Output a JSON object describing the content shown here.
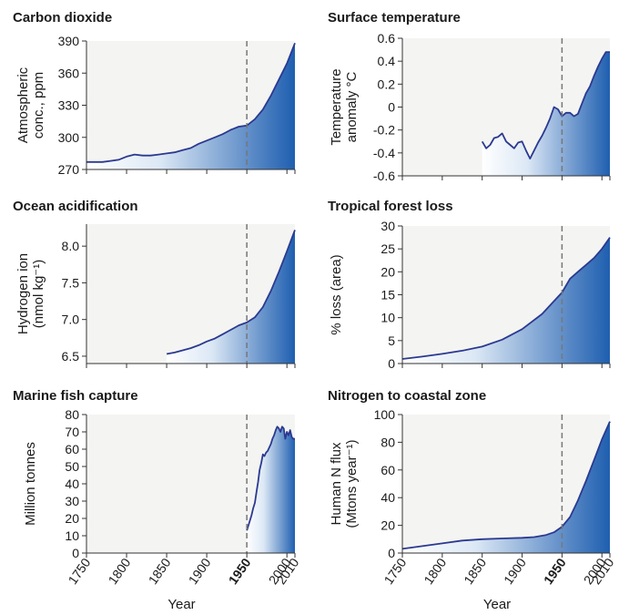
{
  "figure": {
    "x_axis_title": "Year",
    "x_tick_labels": [
      "1750",
      "1800",
      "1850",
      "1900",
      "1950",
      "2000",
      "2010"
    ],
    "bold_tick": "1950",
    "reference_year": 1950
  },
  "colors": {
    "line": "#2b3990",
    "fill_light": "#ffffff",
    "fill_dark": "#1f5fb0",
    "plot_bg": "#f4f4f2",
    "dashed": "#777777",
    "axis": "#333333"
  },
  "chart_data": [
    {
      "type": "area",
      "title": "Carbon dioxide",
      "ylabel_lines": [
        "Atmospheric",
        "conc., ppm"
      ],
      "ylim": [
        270,
        390
      ],
      "yticks": [
        270,
        300,
        330,
        360,
        390
      ],
      "ytick_labels": [
        "270",
        "300",
        "330",
        "360",
        "390"
      ],
      "x": [
        1750,
        1760,
        1770,
        1780,
        1790,
        1800,
        1810,
        1820,
        1830,
        1840,
        1850,
        1860,
        1870,
        1880,
        1890,
        1900,
        1910,
        1920,
        1930,
        1940,
        1950,
        1960,
        1970,
        1980,
        1990,
        2000,
        2010
      ],
      "y": [
        277,
        277,
        277,
        278,
        279,
        282,
        284,
        283,
        283,
        284,
        285,
        286,
        288,
        290,
        294,
        297,
        300,
        303,
        307,
        310,
        311,
        317,
        326,
        339,
        354,
        369,
        388
      ]
    },
    {
      "type": "area",
      "title": "Surface temperature",
      "ylabel_lines": [
        "Temperature",
        "anomaly °C"
      ],
      "ylim": [
        -0.6,
        0.6
      ],
      "yticks": [
        -0.6,
        -0.4,
        -0.2,
        0,
        0.2,
        0.4,
        0.6
      ],
      "ytick_labels": [
        "-0.6",
        "-0.4",
        "-0.2",
        "0",
        "0.2",
        "0.4",
        "0.6"
      ],
      "x": [
        1850,
        1855,
        1860,
        1865,
        1870,
        1875,
        1880,
        1885,
        1890,
        1895,
        1900,
        1905,
        1910,
        1915,
        1920,
        1925,
        1930,
        1935,
        1940,
        1945,
        1950,
        1955,
        1960,
        1965,
        1970,
        1975,
        1980,
        1985,
        1990,
        1995,
        2000,
        2005,
        2010
      ],
      "y": [
        -0.3,
        -0.36,
        -0.33,
        -0.27,
        -0.26,
        -0.23,
        -0.3,
        -0.33,
        -0.36,
        -0.31,
        -0.3,
        -0.38,
        -0.45,
        -0.38,
        -0.31,
        -0.25,
        -0.18,
        -0.1,
        0.0,
        -0.02,
        -0.08,
        -0.05,
        -0.05,
        -0.08,
        -0.06,
        0.03,
        0.12,
        0.18,
        0.27,
        0.35,
        0.42,
        0.48,
        0.48
      ]
    },
    {
      "type": "area",
      "title": "Ocean acidification",
      "ylabel_lines": [
        "Hydrogen ion",
        "(nmol kg⁻¹)"
      ],
      "ylim": [
        6.4,
        8.3
      ],
      "yticks": [
        6.5,
        7.0,
        7.5,
        8.0
      ],
      "ytick_labels": [
        "6.5",
        "7.0",
        "7.5",
        "8.0"
      ],
      "x": [
        1850,
        1860,
        1870,
        1880,
        1890,
        1900,
        1910,
        1920,
        1930,
        1940,
        1950,
        1960,
        1970,
        1980,
        1990,
        2000,
        2010
      ],
      "y": [
        6.53,
        6.55,
        6.58,
        6.61,
        6.65,
        6.7,
        6.74,
        6.8,
        6.86,
        6.92,
        6.96,
        7.03,
        7.17,
        7.39,
        7.65,
        7.93,
        8.22
      ]
    },
    {
      "type": "area",
      "title": "Tropical forest loss",
      "ylabel_lines": [
        "% loss (area)"
      ],
      "ylim": [
        0,
        30
      ],
      "yticks": [
        0,
        5,
        10,
        15,
        20,
        25,
        30
      ],
      "ytick_labels": [
        "0",
        "5",
        "10",
        "15",
        "20",
        "25",
        "30"
      ],
      "x": [
        1750,
        1775,
        1800,
        1825,
        1850,
        1875,
        1900,
        1925,
        1950,
        1960,
        1970,
        1980,
        1990,
        2000,
        2010
      ],
      "y": [
        1.0,
        1.5,
        2.1,
        2.8,
        3.7,
        5.2,
        7.5,
        10.8,
        15.5,
        18.5,
        20.0,
        21.5,
        23.0,
        25.0,
        27.5
      ]
    },
    {
      "type": "area",
      "title": "Marine fish capture",
      "ylabel_lines": [
        "Million tonnes"
      ],
      "ylim": [
        0,
        80
      ],
      "yticks": [
        0,
        10,
        20,
        30,
        40,
        50,
        60,
        70,
        80
      ],
      "ytick_labels": [
        "0",
        "10",
        "20",
        "30",
        "40",
        "50",
        "60",
        "70",
        "80"
      ],
      "x": [
        1950,
        1952,
        1954,
        1956,
        1958,
        1960,
        1962,
        1964,
        1966,
        1968,
        1970,
        1972,
        1974,
        1976,
        1978,
        1980,
        1982,
        1984,
        1986,
        1988,
        1990,
        1992,
        1994,
        1996,
        1998,
        2000,
        2002,
        2004,
        2006,
        2008,
        2010
      ],
      "y": [
        13,
        16,
        19,
        22,
        26,
        29,
        35,
        41,
        48,
        52,
        57,
        56,
        58,
        59,
        61,
        63,
        66,
        68,
        71,
        73,
        72,
        70,
        73,
        72,
        66,
        70,
        68,
        71,
        67,
        66,
        66
      ]
    },
    {
      "type": "area",
      "title": "Nitrogen to coastal zone",
      "ylabel_lines": [
        "Human N flux",
        "(Mtons year⁻¹)"
      ],
      "ylim": [
        0,
        100
      ],
      "yticks": [
        0,
        20,
        40,
        60,
        80,
        100
      ],
      "ytick_labels": [
        "0",
        "20",
        "40",
        "60",
        "80",
        "100"
      ],
      "x": [
        1750,
        1775,
        1800,
        1825,
        1850,
        1875,
        1900,
        1915,
        1930,
        1940,
        1950,
        1960,
        1970,
        1980,
        1990,
        2000,
        2010
      ],
      "y": [
        3,
        5,
        7,
        9,
        10,
        10.5,
        11,
        11.5,
        13,
        15,
        19,
        26,
        38,
        52,
        67,
        82,
        95
      ]
    }
  ]
}
